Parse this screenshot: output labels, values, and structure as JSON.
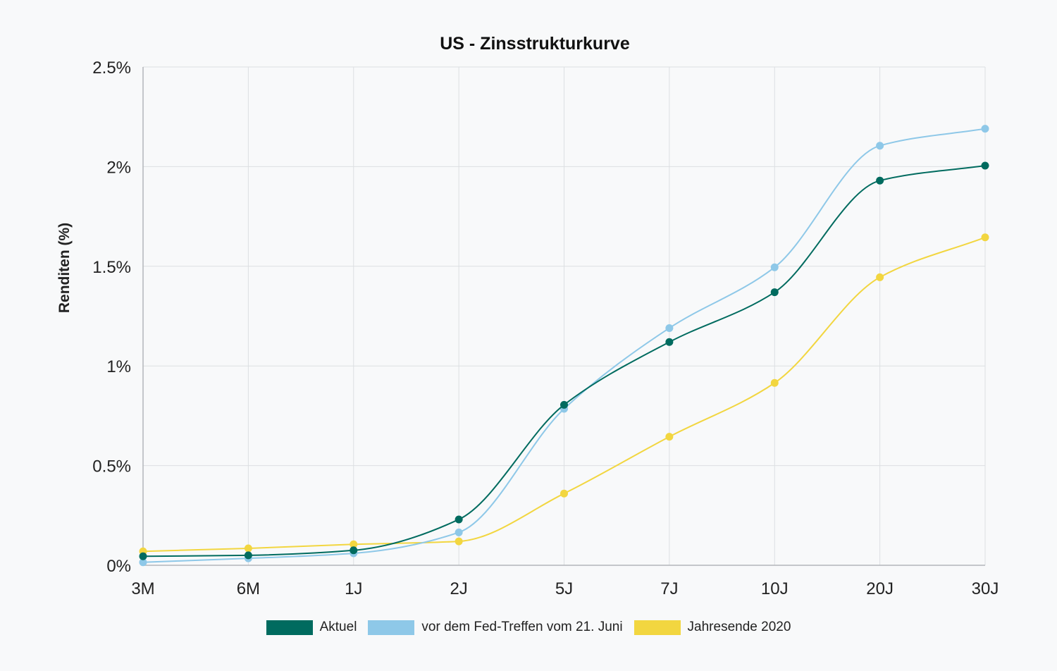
{
  "chart_data": {
    "type": "line",
    "title": "US - Zinsstrukturkurve",
    "xlabel": "",
    "ylabel": "Renditen (%)",
    "categories": [
      "3M",
      "6M",
      "1J",
      "2J",
      "5J",
      "7J",
      "10J",
      "20J",
      "30J"
    ],
    "ylim": [
      0,
      2.5
    ],
    "yticks": [
      0,
      0.5,
      1,
      1.5,
      2,
      2.5
    ],
    "ytick_labels": [
      "0%",
      "0.5%",
      "1%",
      "1.5%",
      "2%",
      "2.5%"
    ],
    "grid": true,
    "legend_position": "bottom-center",
    "series": [
      {
        "name": "Aktuel",
        "color": "#006b5f",
        "values": [
          0.045,
          0.05,
          0.075,
          0.23,
          0.805,
          1.12,
          1.37,
          1.93,
          2.005
        ]
      },
      {
        "name": "vor dem Fed-Treffen vom 21. Juni",
        "color": "#8ec8e8",
        "values": [
          0.015,
          0.035,
          0.06,
          0.165,
          0.785,
          1.19,
          1.495,
          2.105,
          2.19
        ]
      },
      {
        "name": "Jahresende 2020",
        "color": "#f2d640",
        "values": [
          0.07,
          0.085,
          0.105,
          0.12,
          0.36,
          0.645,
          0.915,
          1.445,
          1.645
        ]
      }
    ]
  }
}
